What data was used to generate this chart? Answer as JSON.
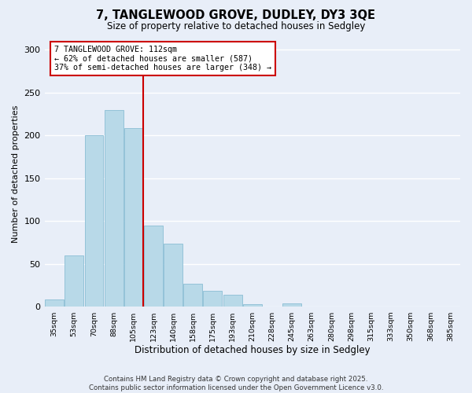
{
  "title": "7, TANGLEWOOD GROVE, DUDLEY, DY3 3QE",
  "subtitle": "Size of property relative to detached houses in Sedgley",
  "xlabel": "Distribution of detached houses by size in Sedgley",
  "ylabel": "Number of detached properties",
  "categories": [
    "35sqm",
    "53sqm",
    "70sqm",
    "88sqm",
    "105sqm",
    "123sqm",
    "140sqm",
    "158sqm",
    "175sqm",
    "193sqm",
    "210sqm",
    "228sqm",
    "245sqm",
    "263sqm",
    "280sqm",
    "298sqm",
    "315sqm",
    "333sqm",
    "350sqm",
    "368sqm",
    "385sqm"
  ],
  "values": [
    9,
    60,
    200,
    230,
    209,
    95,
    74,
    27,
    19,
    14,
    3,
    0,
    4,
    0,
    0,
    0,
    0,
    0,
    0,
    0,
    0
  ],
  "bar_color": "#b8d9e8",
  "bar_edge_color": "#8abdd4",
  "marker_line_color": "#cc0000",
  "annotation_box_color": "#ffffff",
  "annotation_box_edge": "#cc0000",
  "ylim": [
    0,
    310
  ],
  "yticks": [
    0,
    50,
    100,
    150,
    200,
    250,
    300
  ],
  "footer_line1": "Contains HM Land Registry data © Crown copyright and database right 2025.",
  "footer_line2": "Contains public sector information licensed under the Open Government Licence v3.0.",
  "background_color": "#e8eef8",
  "grid_color": "#ffffff"
}
